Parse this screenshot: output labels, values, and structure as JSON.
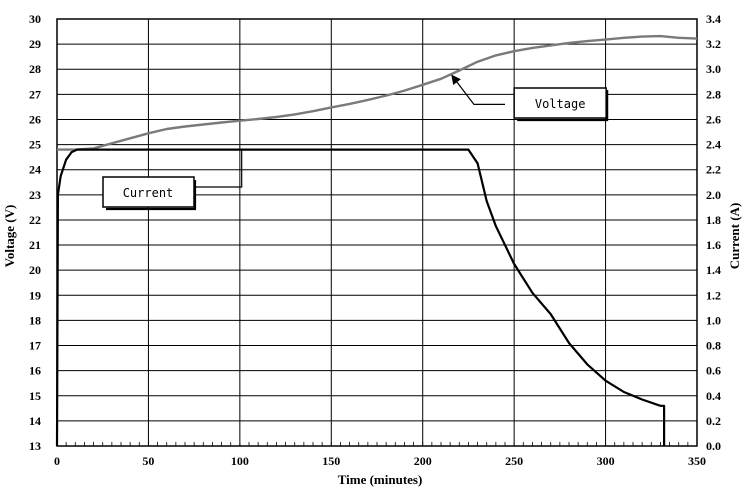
{
  "chart_data": {
    "type": "line",
    "xlabel": "Time (minutes)",
    "ylabel_left": "Voltage (V)",
    "ylabel_right": "Current (A)",
    "xlim": [
      0,
      350
    ],
    "ylim_left": [
      13,
      30
    ],
    "ylim_right": [
      0.0,
      3.4
    ],
    "x_ticks": [
      "0",
      "50",
      "100",
      "150",
      "200",
      "250",
      "300",
      "350"
    ],
    "y_left_ticks": [
      "13",
      "14",
      "15",
      "16",
      "17",
      "18",
      "19",
      "20",
      "21",
      "22",
      "23",
      "24",
      "25",
      "26",
      "27",
      "28",
      "29",
      "30"
    ],
    "y_right_ticks": [
      "0.0",
      "0.2",
      "0.4",
      "0.6",
      "0.8",
      "1.0",
      "1.2",
      "1.4",
      "1.6",
      "1.8",
      "2.0",
      "2.2",
      "2.4",
      "2.6",
      "2.8",
      "3.0",
      "3.2",
      "3.4"
    ],
    "grid": true,
    "series": [
      {
        "name": "Voltage",
        "axis": "left",
        "color": "#7a7a7a",
        "x": [
          0,
          10,
          20,
          30,
          40,
          50,
          60,
          70,
          80,
          90,
          100,
          110,
          120,
          130,
          140,
          150,
          160,
          170,
          180,
          190,
          200,
          210,
          220,
          230,
          240,
          250,
          260,
          270,
          280,
          290,
          300,
          310,
          320,
          330,
          340,
          350
        ],
        "y": [
          24.8,
          24.8,
          24.85,
          25.05,
          25.25,
          25.45,
          25.62,
          25.72,
          25.8,
          25.88,
          25.95,
          26.02,
          26.1,
          26.2,
          26.33,
          26.48,
          26.62,
          26.78,
          26.95,
          27.15,
          27.38,
          27.62,
          27.95,
          28.3,
          28.55,
          28.72,
          28.85,
          28.95,
          29.05,
          29.12,
          29.18,
          29.25,
          29.3,
          29.32,
          29.25,
          29.22
        ]
      },
      {
        "name": "Current",
        "axis": "right",
        "color": "#000000",
        "x": [
          0,
          0.5,
          2,
          5,
          8,
          11,
          50,
          100,
          150,
          200,
          225,
          230,
          235,
          240,
          250,
          260,
          270,
          280,
          290,
          300,
          310,
          320,
          330,
          332,
          332
        ],
        "y": [
          0.0,
          2.0,
          2.15,
          2.28,
          2.34,
          2.36,
          2.36,
          2.36,
          2.36,
          2.36,
          2.36,
          2.25,
          1.95,
          1.75,
          1.45,
          1.22,
          1.05,
          0.82,
          0.65,
          0.52,
          0.43,
          0.37,
          0.32,
          0.32,
          0.0
        ]
      }
    ],
    "annotations": [
      {
        "label": "Voltage",
        "series": "Voltage"
      },
      {
        "label": "Current",
        "series": "Current"
      }
    ]
  }
}
